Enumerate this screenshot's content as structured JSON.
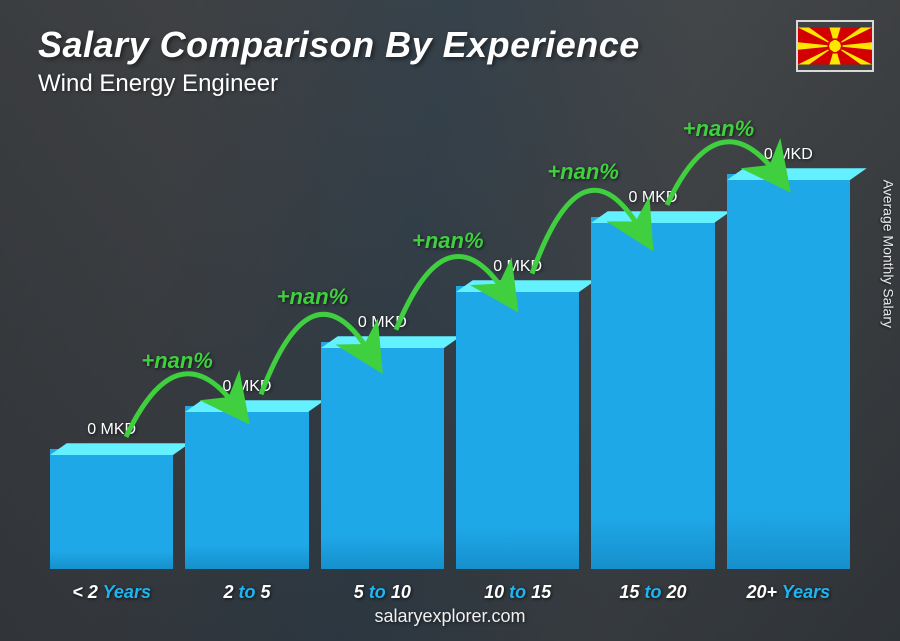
{
  "title": "Salary Comparison By Experience",
  "subtitle": "Wind Energy Engineer",
  "y_axis_label": "Average Monthly Salary",
  "footer": "salaryexplorer.com",
  "flag": {
    "description": "North Macedonia flag",
    "bg_color": "#d20000",
    "sun_color": "#ffe600"
  },
  "chart": {
    "type": "bar",
    "bar_color": "#1fa8e8",
    "bar_top_color": "#4fc0f0",
    "x_label_accent_color": "#1fb4f2",
    "pct_color": "#3fcf3f",
    "arrow_color": "#3fcf3f",
    "bars": [
      {
        "category_prefix": "<",
        "category_num": "2",
        "category_suffix": "Years",
        "value_label": "0 MKD",
        "height_pct": 28
      },
      {
        "category_prefix": "",
        "category_num": "2",
        "category_mid": "to",
        "category_num2": "5",
        "value_label": "0 MKD",
        "height_pct": 38,
        "pct_label": "+nan%"
      },
      {
        "category_prefix": "",
        "category_num": "5",
        "category_mid": "to",
        "category_num2": "10",
        "value_label": "0 MKD",
        "height_pct": 53,
        "pct_label": "+nan%"
      },
      {
        "category_prefix": "",
        "category_num": "10",
        "category_mid": "to",
        "category_num2": "15",
        "value_label": "0 MKD",
        "height_pct": 66,
        "pct_label": "+nan%"
      },
      {
        "category_prefix": "",
        "category_num": "15",
        "category_mid": "to",
        "category_num2": "20",
        "value_label": "0 MKD",
        "height_pct": 82,
        "pct_label": "+nan%"
      },
      {
        "category_prefix": "",
        "category_num": "20+",
        "category_suffix": "Years",
        "value_label": "0 MKD",
        "height_pct": 92,
        "pct_label": "+nan%"
      }
    ]
  }
}
